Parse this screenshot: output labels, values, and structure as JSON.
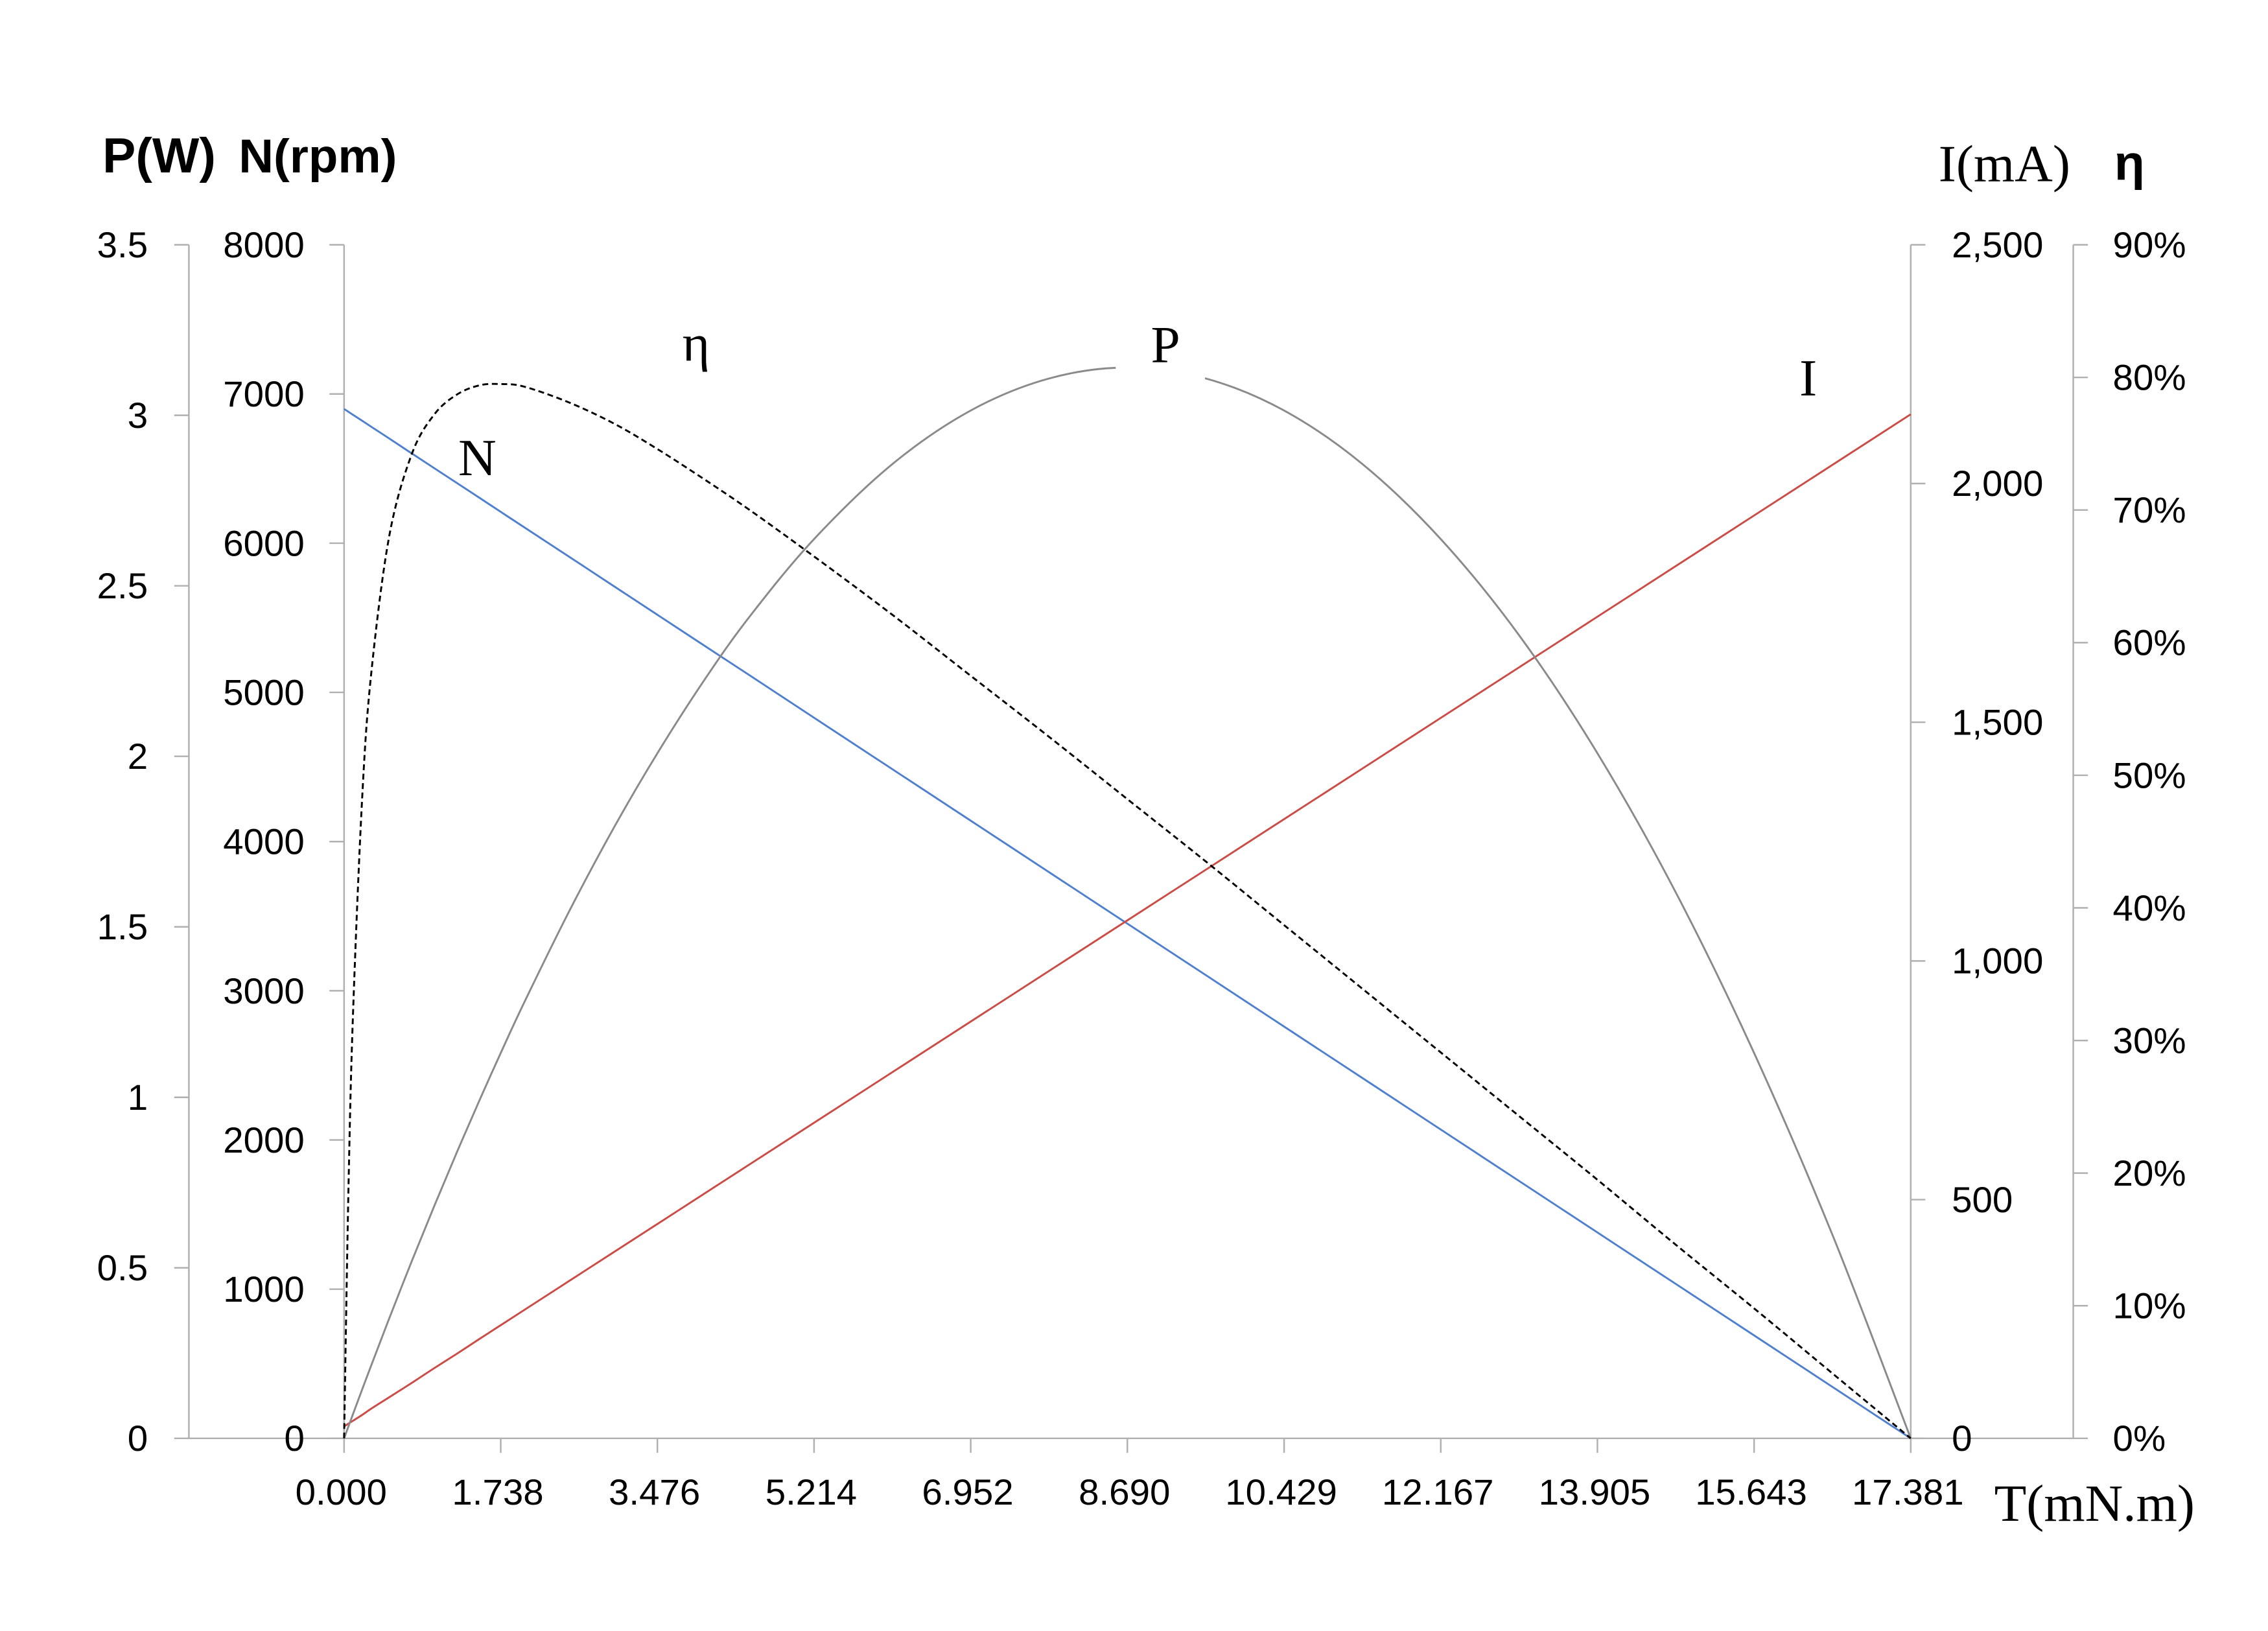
{
  "chart_data": {
    "type": "line",
    "x_axis": {
      "label": "T(mN.m)",
      "min": 0,
      "max": 17.381,
      "ticks": [
        0,
        1.738,
        3.476,
        5.214,
        6.952,
        8.69,
        10.429,
        12.167,
        13.905,
        15.643,
        17.381
      ],
      "tick_labels": [
        "0.000",
        "1.738",
        "3.476",
        "5.214",
        "6.952",
        "8.690",
        "10.429",
        "12.167",
        "13.905",
        "15.643",
        "17.381"
      ]
    },
    "y_axes": [
      {
        "label": "P(W)",
        "min": 0,
        "max": 3.5,
        "ticks": [
          0,
          0.5,
          1,
          1.5,
          2,
          2.5,
          3,
          3.5
        ],
        "tick_labels": [
          "0",
          "0.5",
          "1",
          "1.5",
          "2",
          "2.5",
          "3",
          "3.5"
        ]
      },
      {
        "label": "N(rpm)",
        "min": 0,
        "max": 8000,
        "ticks": [
          0,
          1000,
          2000,
          3000,
          4000,
          5000,
          6000,
          7000,
          8000
        ],
        "tick_labels": [
          "0",
          "1000",
          "2000",
          "3000",
          "4000",
          "5000",
          "6000",
          "7000",
          "8000"
        ]
      },
      {
        "label": "I(mA)",
        "min": 0,
        "max": 2500,
        "ticks": [
          0,
          500,
          1000,
          1500,
          2000,
          2500
        ],
        "tick_labels": [
          "0",
          "500",
          "1,000",
          "1,500",
          "2,000",
          "2,500"
        ]
      },
      {
        "label": "η",
        "min": 0,
        "max": 90,
        "ticks": [
          0,
          10,
          20,
          30,
          40,
          50,
          60,
          70,
          80,
          90
        ],
        "tick_labels": [
          "0%",
          "10%",
          "20%",
          "30%",
          "40%",
          "50%",
          "60%",
          "70%",
          "80%",
          "90%"
        ]
      }
    ],
    "x": [
      0,
      0.05,
      0.1,
      0.2,
      0.3,
      0.5,
      0.75,
      1,
      1.25,
      1.5,
      1.738,
      2,
      2.5,
      3,
      3.476,
      4,
      4.5,
      5.214,
      6.083,
      6.952,
      7.821,
      8.69,
      9.56,
      10.429,
      11.298,
      12.167,
      13.036,
      13.905,
      14.774,
      15.643,
      16.512,
      17.381
    ],
    "series": [
      {
        "name": "N",
        "y_axis": 1,
        "color": "#4f7fd0",
        "dashed": false,
        "values": [
          6900,
          6880,
          6860,
          6821,
          6781,
          6702,
          6602,
          6503,
          6404,
          6305,
          6210,
          6106,
          5908,
          5709,
          5520,
          5312,
          5114,
          4830,
          4485,
          4140,
          3795,
          3450,
          3105,
          2760,
          2415,
          2070,
          1725,
          1380,
          1035,
          690,
          345,
          0
        ]
      },
      {
        "name": "I",
        "y_axis": 2,
        "color": "#cc4b44",
        "dashed": false,
        "values": [
          25,
          31,
          37,
          49,
          62,
          86,
          116,
          147,
          177,
          208,
          237,
          269,
          330,
          391,
          449,
          513,
          574,
          661,
          767,
          873,
          979,
          1085,
          1191,
          1297,
          1403,
          1509,
          1615,
          1721,
          1827,
          1933,
          2039,
          2145
        ]
      },
      {
        "name": "P",
        "y_axis": 0,
        "color": "#8a8a8a",
        "dashed": false,
        "values": [
          0,
          0.036,
          0.072,
          0.143,
          0.213,
          0.351,
          0.519,
          0.681,
          0.838,
          0.99,
          1.13,
          1.279,
          1.547,
          1.794,
          2.009,
          2.225,
          2.41,
          2.637,
          2.857,
          3.014,
          3.108,
          3.14,
          3.108,
          3.014,
          2.857,
          2.637,
          2.355,
          2.009,
          1.601,
          1.13,
          0.597,
          0
        ]
      },
      {
        "name": "η",
        "y_axis": 3,
        "color": "#000000",
        "dashed": true,
        "values": [
          0,
          19.3,
          32.2,
          48.2,
          57.6,
          68.0,
          74.2,
          77.2,
          78.7,
          79.4,
          79.5,
          79.3,
          78.1,
          76.5,
          74.6,
          72.3,
          70.0,
          66.5,
          62.1,
          57.5,
          52.9,
          48.2,
          43.5,
          38.7,
          33.9,
          29.1,
          24.3,
          19.5,
          14.6,
          9.8,
          4.9,
          0
        ]
      }
    ],
    "grid": false
  }
}
